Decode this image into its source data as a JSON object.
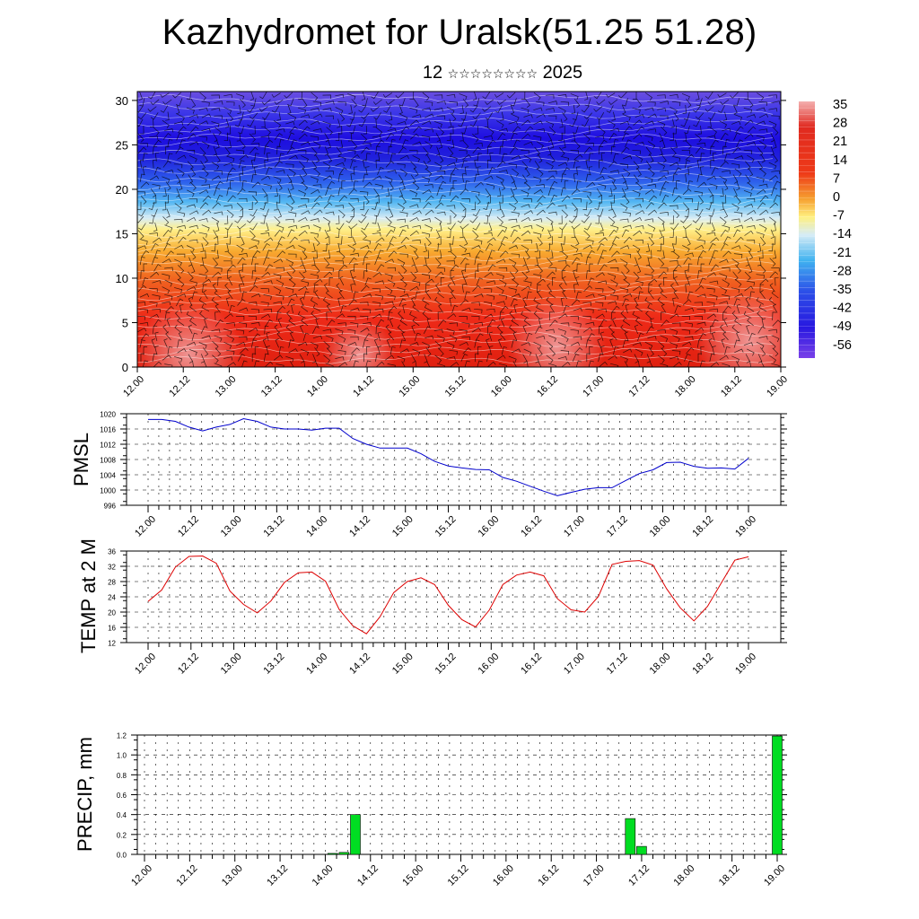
{
  "title": "Kazhydromet for Uralsk(51.25 51.28)",
  "subtitle": {
    "day": "12",
    "month_glyphs": "☆☆☆☆☆☆☆☆",
    "year": "2025"
  },
  "time_labels": [
    "12.00",
    "12.12",
    "13.00",
    "13.12",
    "14.00",
    "14.12",
    "15.00",
    "15.12",
    "16.00",
    "16.12",
    "17.00",
    "17.12",
    "18.00",
    "18.12",
    "19.00"
  ],
  "chart_data": [
    {
      "type": "heatmap",
      "name": "vertical-cross-section",
      "ylim": [
        0,
        31
      ],
      "yticks": [
        0,
        5,
        10,
        15,
        20,
        25,
        30
      ],
      "colorbar_labels": [
        "35",
        "28",
        "21",
        "14",
        "7",
        "0",
        "-7",
        "-14",
        "-21",
        "-28",
        "-35",
        "-42",
        "-49",
        "-56"
      ]
    },
    {
      "type": "line",
      "ylabel": "PMSL",
      "ylim": [
        996,
        1020
      ],
      "yticks": [
        996,
        1000,
        1004,
        1008,
        1012,
        1016,
        1020
      ],
      "color": "#0000cc",
      "values": [
        1018.5,
        1018.5,
        1018,
        1016.5,
        1015.5,
        1016.5,
        1017.2,
        1018.7,
        1018,
        1016.5,
        1016,
        1016,
        1015.7,
        1016.2,
        1016.2,
        1013.5,
        1012,
        1011,
        1011,
        1011,
        1009.5,
        1007.5,
        1006.3,
        1005.8,
        1005.4,
        1005.3,
        1003.3,
        1002.3,
        1001,
        999.7,
        998.5,
        999.4,
        1000.2,
        1000.6,
        1000.6,
        1002.5,
        1004.3,
        1005.3,
        1007.2,
        1007.3,
        1006.2,
        1005.7,
        1005.8,
        1005.5,
        1008.3
      ]
    },
    {
      "type": "line",
      "ylabel": "TEMP at 2 M",
      "ylim": [
        12,
        36
      ],
      "yticks": [
        12,
        16,
        20,
        24,
        28,
        32,
        36
      ],
      "color": "#dd0000",
      "values": [
        22.8,
        25.8,
        31.8,
        34.6,
        34.7,
        32.8,
        25.5,
        22,
        19.8,
        22.9,
        27.8,
        30.3,
        30.5,
        28.1,
        20.7,
        16.4,
        14.3,
        18.8,
        25.1,
        28,
        29,
        27.2,
        21.8,
        18,
        16.1,
        20.5,
        27.2,
        29.7,
        30.5,
        29.5,
        23.5,
        20.6,
        20,
        24.1,
        32.5,
        33.3,
        33.5,
        32.3,
        26.1,
        21.1,
        17.7,
        21.5,
        27.6,
        33.6,
        34.5
      ]
    },
    {
      "type": "bar",
      "ylabel": "PRECIP, mm",
      "ylim": [
        0,
        1.2
      ],
      "yticks": [
        "0.0",
        "0.2",
        "0.4",
        "0.6",
        "0.8",
        "1.0",
        "1.2"
      ],
      "color": "#00dd22",
      "bars": [
        {
          "hour": 50,
          "value": 0.01
        },
        {
          "hour": 53,
          "value": 0.02
        },
        {
          "hour": 56,
          "value": 0.4
        },
        {
          "hour": 129,
          "value": 0.36
        },
        {
          "hour": 132,
          "value": 0.08
        },
        {
          "hour": 168,
          "value": 1.19
        }
      ]
    }
  ]
}
